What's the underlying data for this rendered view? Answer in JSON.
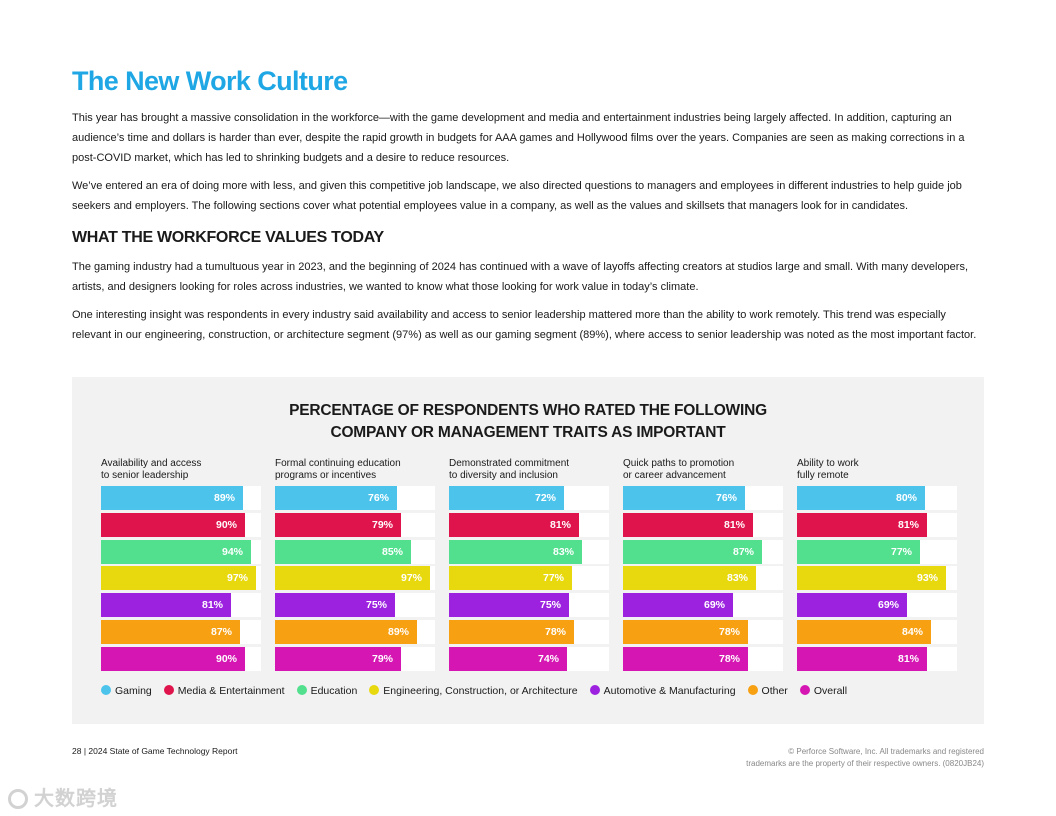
{
  "title": "The New Work Culture",
  "intro": [
    "This year has brought a massive consolidation in the workforce—with the game development and media and entertainment industries being largely affected. In addition, capturing an audience’s time and dollars is harder than ever, despite the rapid growth in budgets for AAA games and Hollywood films over the years. Companies are seen as making corrections in a post-COVID market, which has led to shrinking budgets and a desire to reduce resources.",
    "We’ve entered an era of doing more with less, and given this competitive job landscape, we also directed questions to managers and employees in different industries to help guide job seekers and employers. The following sections cover what potential employees value in a company, as well as the values and skillsets that managers look for in candidates."
  ],
  "section": {
    "heading": "WHAT THE WORKFORCE VALUES TODAY",
    "paragraphs": [
      "The gaming industry had a tumultuous year in 2023, and the beginning of 2024 has continued with a wave of layoffs affecting creators at studios large and small. With many developers, artists, and designers looking for roles across industries, we wanted to know what those looking for work value in today’s climate.",
      "One interesting insight was respondents in every industry said availability and access to senior leadership mattered more than the ability to work remotely. This trend was especially relevant in our engineering, construction, or architecture segment (97%) as well as our gaming segment (89%), where access to senior leadership was noted as the most important factor."
    ]
  },
  "chart_data": {
    "type": "bar",
    "orientation": "horizontal",
    "title_lines": [
      "PERCENTAGE OF RESPONDENTS WHO RATED THE FOLLOWING",
      "COMPANY OR MANAGEMENT TRAITS AS IMPORTANT"
    ],
    "unit": "%",
    "xlim": [
      0,
      100
    ],
    "series": [
      {
        "name": "Gaming",
        "color": "#4cc3eb"
      },
      {
        "name": "Media & Entertainment",
        "color": "#e0144c"
      },
      {
        "name": "Education",
        "color": "#52e08e"
      },
      {
        "name": "Engineering, Construction, or Architecture",
        "color": "#e8d80e"
      },
      {
        "name": "Automotive & Manufacturing",
        "color": "#9d22e0"
      },
      {
        "name": "Other",
        "color": "#f7a012"
      },
      {
        "name": "Overall",
        "color": "#d516b3"
      }
    ],
    "panels": [
      {
        "label_lines": [
          "Availability and access",
          "to senior leadership"
        ],
        "values": [
          89,
          90,
          94,
          97,
          81,
          87,
          90
        ]
      },
      {
        "label_lines": [
          "Formal continuing education",
          "programs or incentives"
        ],
        "values": [
          76,
          79,
          85,
          97,
          75,
          89,
          79
        ]
      },
      {
        "label_lines": [
          "Demonstrated commitment",
          "to diversity and inclusion"
        ],
        "values": [
          72,
          81,
          83,
          77,
          75,
          78,
          74
        ]
      },
      {
        "label_lines": [
          "Quick paths to promotion",
          "or career advancement"
        ],
        "values": [
          76,
          81,
          87,
          83,
          69,
          78,
          78
        ]
      },
      {
        "label_lines": [
          "Ability to work",
          "fully remote"
        ],
        "values": [
          80,
          81,
          77,
          93,
          69,
          84,
          81
        ]
      }
    ]
  },
  "footer": {
    "left": "28 | 2024 State of Game Technology Report",
    "right_lines": [
      "© Perforce Software, Inc. All trademarks and registered",
      "trademarks are the property of their respective owners. (0820JB24)"
    ]
  },
  "watermark": "大数跨境"
}
